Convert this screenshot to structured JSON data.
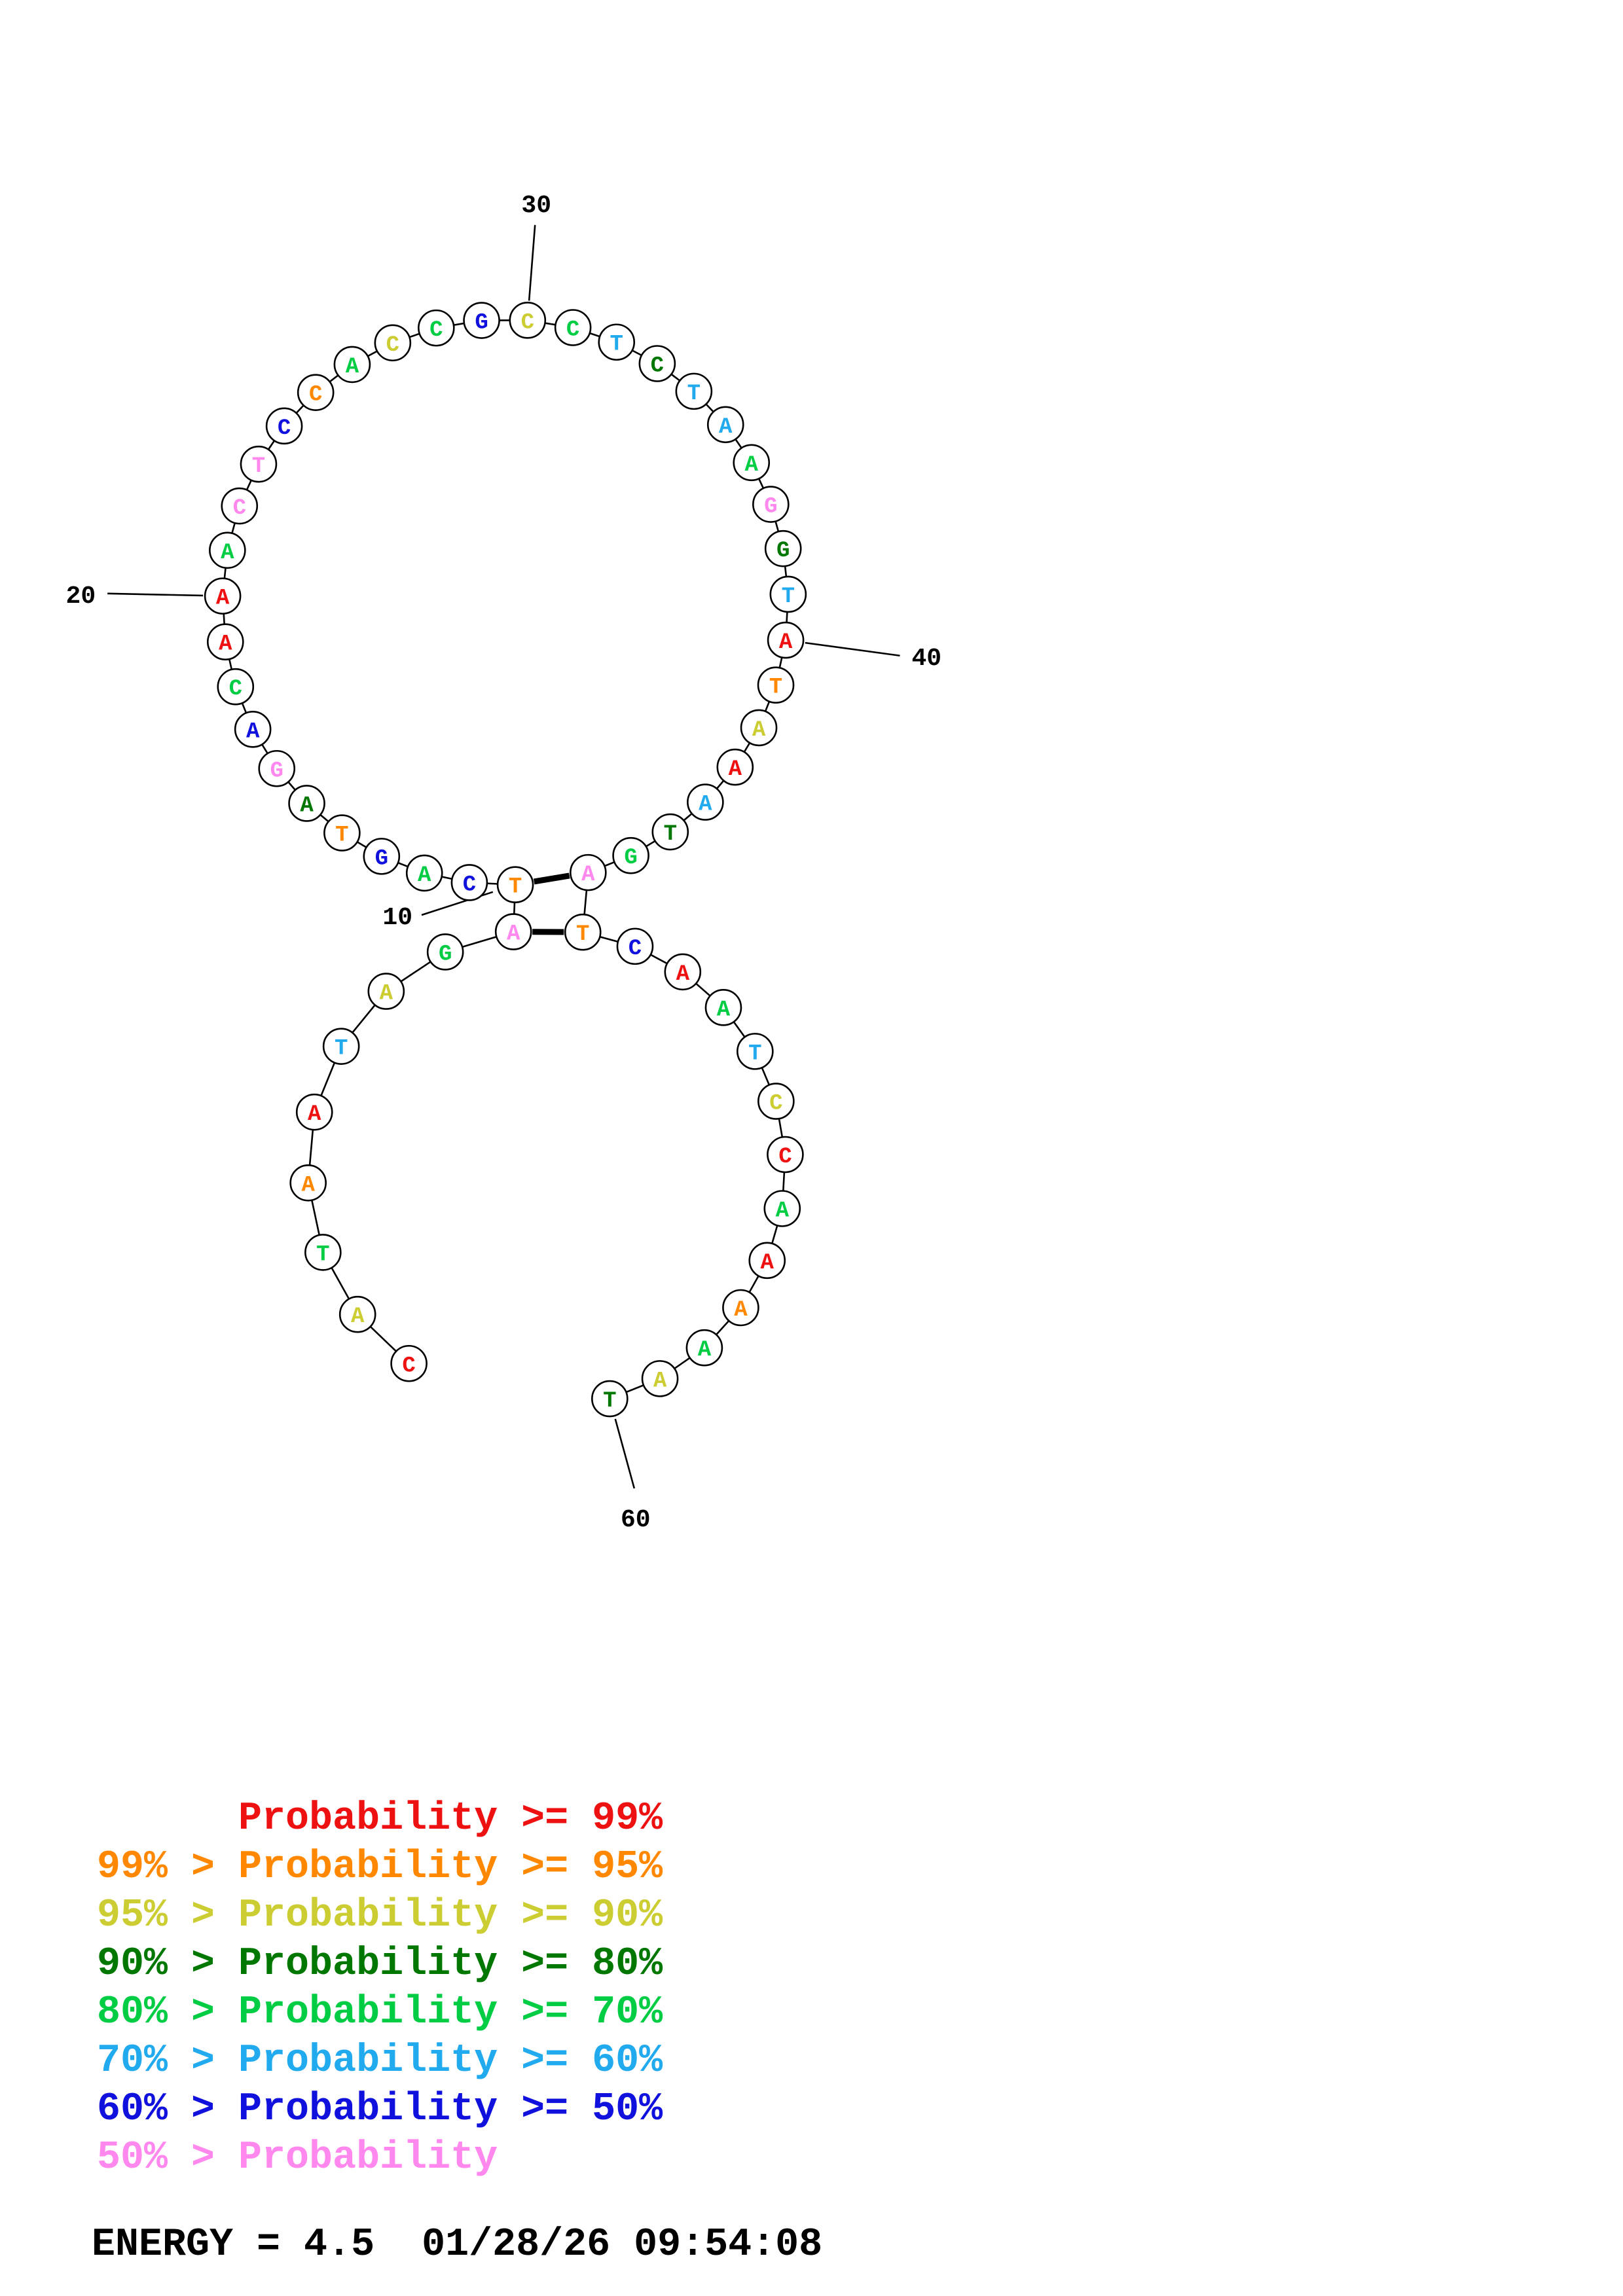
{
  "structure": {
    "bases": "CATAATAGATCAGTAGACAAACTCCACCGCCTCTAAGGTATAAATGATCAATCCAAAAAT",
    "colors": [
      "#ee1111",
      "#cccc33",
      "#00cc44",
      "#ff8800",
      "#ee1111",
      "#22aaee",
      "#cccc33",
      "#00cc44",
      "#ff88ee",
      "#ff8800",
      "#1111dd",
      "#00cc44",
      "#1111dd",
      "#ff8800",
      "#007700",
      "#ff88ee",
      "#1111dd",
      "#00cc44",
      "#ee1111",
      "#ee1111",
      "#00cc44",
      "#ff88ee",
      "#ff88ee",
      "#1111dd",
      "#ff8800",
      "#00cc44",
      "#cccc33",
      "#00cc44",
      "#1111dd",
      "#cccc33",
      "#00cc44",
      "#22aaee",
      "#007700",
      "#22aaee",
      "#22aaee",
      "#00cc44",
      "#ff88ee",
      "#007700",
      "#22aaee",
      "#ee1111",
      "#ff8800",
      "#cccc33",
      "#ee1111",
      "#22aaee",
      "#007700",
      "#00cc44",
      "#ff88ee",
      "#ff8800",
      "#1111dd",
      "#ee1111",
      "#00cc44",
      "#22aaee",
      "#cccc33",
      "#ee1111",
      "#00cc44",
      "#ee1111",
      "#ff8800",
      "#00cc44",
      "#cccc33",
      "#007700"
    ],
    "pairs": [
      [
        10,
        47
      ],
      [
        9,
        48
      ]
    ],
    "position_ticks": [
      {
        "pos": 10,
        "label": "10"
      },
      {
        "pos": 20,
        "label": "20"
      },
      {
        "pos": 30,
        "label": "30"
      },
      {
        "pos": 40,
        "label": "40"
      },
      {
        "pos": 60,
        "label": "60"
      }
    ]
  },
  "legend": {
    "entries": [
      {
        "text": "      Probability >= 99%",
        "color": "#ee1111"
      },
      {
        "text": "99% > Probability >= 95%",
        "color": "#ff8800"
      },
      {
        "text": "95% > Probability >= 90%",
        "color": "#cccc33"
      },
      {
        "text": "90% > Probability >= 80%",
        "color": "#007700"
      },
      {
        "text": "80% > Probability >= 70%",
        "color": "#00cc44"
      },
      {
        "text": "70% > Probability >= 60%",
        "color": "#22aaee"
      },
      {
        "text": "60% > Probability >= 50%",
        "color": "#1111dd"
      },
      {
        "text": "50% > Probability",
        "color": "#ff88ee"
      }
    ]
  },
  "footer": {
    "energy_text": "ENERGY = 4.5  01/28/26 09:54:08"
  }
}
